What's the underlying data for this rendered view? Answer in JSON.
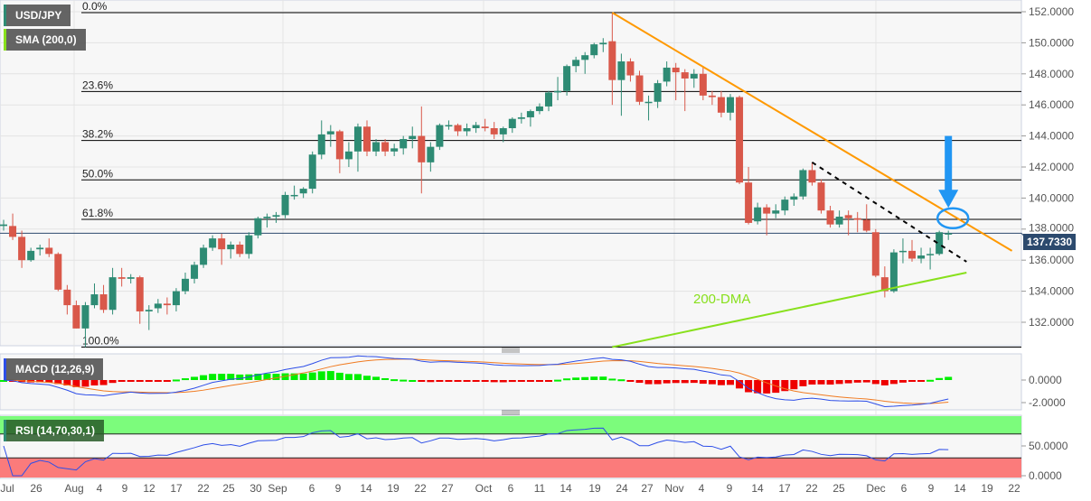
{
  "symbol_label": "USD/JPY",
  "sma_label": "SMA (200,0)",
  "macd_label": "MACD (12,26,9)",
  "rsi_label": "RSI (14,70,30,1)",
  "annotation_200dma": "200-DMA",
  "current_price": "137.7330",
  "colors": {
    "up": "#2e8b74",
    "down": "#d9584a",
    "fib": "#000000",
    "trend": "#ff9900",
    "sma": "#88e01c",
    "arrow": "#2196f3",
    "price_tag": "#2c4a6e",
    "macd": "#2d4ee8",
    "signal": "#f07a20",
    "hist_up": "#00ee00",
    "hist_down": "#ee0000",
    "rsi": "#2d4ee8",
    "overbought": "#7cfc7c",
    "oversold": "#fb7b7b"
  },
  "chart_data": {
    "type": "candlestick",
    "ylim": [
      130.4,
      152.6
    ],
    "y_ticks": [
      "152.0000",
      "150.0000",
      "148.0000",
      "146.0000",
      "144.0000",
      "142.0000",
      "140.0000",
      "138.0000",
      "136.0000",
      "134.0000",
      "132.0000"
    ],
    "x_ticks": [
      "Jul",
      "26",
      "Aug",
      "4",
      "9",
      "12",
      "17",
      "22",
      "25",
      "30",
      "Sep",
      "6",
      "9",
      "14",
      "19",
      "22",
      "27",
      "Oct",
      "6",
      "11",
      "14",
      "19",
      "24",
      "27",
      "Nov",
      "4",
      "9",
      "14",
      "17",
      "22",
      "25",
      "Dec",
      "6",
      "9",
      "14",
      "19",
      "22"
    ],
    "candles_ohlc": [
      [
        138.2,
        138.6,
        137.9,
        138.3
      ],
      [
        138.2,
        139.0,
        137.3,
        137.5
      ],
      [
        137.5,
        137.9,
        135.5,
        136.0
      ],
      [
        136.0,
        136.8,
        135.9,
        136.6
      ],
      [
        136.7,
        137.0,
        136.3,
        136.8
      ],
      [
        136.8,
        137.4,
        136.2,
        136.4
      ],
      [
        136.4,
        136.5,
        134.0,
        134.1
      ],
      [
        134.1,
        134.4,
        132.5,
        133.1
      ],
      [
        133.1,
        133.4,
        131.6,
        131.6
      ],
      [
        131.6,
        133.3,
        130.4,
        133.1
      ],
      [
        133.1,
        134.5,
        132.9,
        133.8
      ],
      [
        133.8,
        134.4,
        132.6,
        132.8
      ],
      [
        132.8,
        135.5,
        132.5,
        134.9
      ],
      [
        134.9,
        135.5,
        134.3,
        134.8
      ],
      [
        134.8,
        135.1,
        134.5,
        134.9
      ],
      [
        134.9,
        135.0,
        131.9,
        132.7
      ],
      [
        132.7,
        133.1,
        131.5,
        132.8
      ],
      [
        132.9,
        133.5,
        132.6,
        133.2
      ],
      [
        133.2,
        133.6,
        132.5,
        133.1
      ],
      [
        133.1,
        134.2,
        132.7,
        134.0
      ],
      [
        134.0,
        135.2,
        133.8,
        134.8
      ],
      [
        134.8,
        135.9,
        134.5,
        135.7
      ],
      [
        135.7,
        137.0,
        135.5,
        136.8
      ],
      [
        136.8,
        137.6,
        136.6,
        137.4
      ],
      [
        137.4,
        137.7,
        135.7,
        136.7
      ],
      [
        136.7,
        137.2,
        136.1,
        137.0
      ],
      [
        137.0,
        137.2,
        136.2,
        136.4
      ],
      [
        136.4,
        137.8,
        136.1,
        137.6
      ],
      [
        137.6,
        138.8,
        137.4,
        138.7
      ],
      [
        138.7,
        139.0,
        138.1,
        138.8
      ],
      [
        138.8,
        139.1,
        138.4,
        138.9
      ],
      [
        138.9,
        140.4,
        138.7,
        140.2
      ],
      [
        140.2,
        140.8,
        139.9,
        140.2
      ],
      [
        140.3,
        140.7,
        140.0,
        140.6
      ],
      [
        140.6,
        143.0,
        140.3,
        142.8
      ],
      [
        142.8,
        145.0,
        142.5,
        144.1
      ],
      [
        144.1,
        144.7,
        143.3,
        144.3
      ],
      [
        144.3,
        144.4,
        141.6,
        142.5
      ],
      [
        142.5,
        143.6,
        142.0,
        143.0
      ],
      [
        143.0,
        144.8,
        141.7,
        144.6
      ],
      [
        144.6,
        145.0,
        142.7,
        143.0
      ],
      [
        143.0,
        143.8,
        142.7,
        143.6
      ],
      [
        143.6,
        143.8,
        142.7,
        143.0
      ],
      [
        143.0,
        143.5,
        142.7,
        143.2
      ],
      [
        143.2,
        144.0,
        142.8,
        143.8
      ],
      [
        143.8,
        144.6,
        143.2,
        144.0
      ],
      [
        144.0,
        145.9,
        140.3,
        142.3
      ],
      [
        142.3,
        143.6,
        141.7,
        143.3
      ],
      [
        143.3,
        144.8,
        143.1,
        144.7
      ],
      [
        144.7,
        145.0,
        144.4,
        144.7
      ],
      [
        144.7,
        144.8,
        144.0,
        144.3
      ],
      [
        144.3,
        144.8,
        144.0,
        144.5
      ],
      [
        144.5,
        144.9,
        144.2,
        144.7
      ],
      [
        144.6,
        145.1,
        144.3,
        144.5
      ],
      [
        144.5,
        144.9,
        143.8,
        144.1
      ],
      [
        144.1,
        144.6,
        143.6,
        144.5
      ],
      [
        144.5,
        145.2,
        144.2,
        145.1
      ],
      [
        145.1,
        145.5,
        144.8,
        145.2
      ],
      [
        145.2,
        145.7,
        144.6,
        145.6
      ],
      [
        145.6,
        146.1,
        145.4,
        145.9
      ],
      [
        145.9,
        146.9,
        145.6,
        146.8
      ],
      [
        146.8,
        147.8,
        146.3,
        146.9
      ],
      [
        146.9,
        148.6,
        146.6,
        148.5
      ],
      [
        148.5,
        149.1,
        148.1,
        148.9
      ],
      [
        148.9,
        149.4,
        148.0,
        149.2
      ],
      [
        149.2,
        150.0,
        149.0,
        149.9
      ],
      [
        149.9,
        150.3,
        149.4,
        150.0
      ],
      [
        150.1,
        151.9,
        146.0,
        147.6
      ],
      [
        147.6,
        149.3,
        145.3,
        148.8
      ],
      [
        148.8,
        149.0,
        147.5,
        147.9
      ],
      [
        147.9,
        148.2,
        146.0,
        146.2
      ],
      [
        146.2,
        146.6,
        145.0,
        146.2
      ],
      [
        146.2,
        147.6,
        145.8,
        147.4
      ],
      [
        147.5,
        148.8,
        147.2,
        148.4
      ],
      [
        148.4,
        148.7,
        146.3,
        148.1
      ],
      [
        148.1,
        148.3,
        145.6,
        147.7
      ],
      [
        147.7,
        148.3,
        147.1,
        148.0
      ],
      [
        148.0,
        148.4,
        146.3,
        146.6
      ],
      [
        146.6,
        146.9,
        146.0,
        146.5
      ],
      [
        146.5,
        146.9,
        145.2,
        145.5
      ],
      [
        145.5,
        146.7,
        145.0,
        146.5
      ],
      [
        146.5,
        146.6,
        140.9,
        141.0
      ],
      [
        141.0,
        142.0,
        138.3,
        138.4
      ],
      [
        138.5,
        139.7,
        138.3,
        139.4
      ],
      [
        139.4,
        139.6,
        137.6,
        139.0
      ],
      [
        139.0,
        139.6,
        138.7,
        139.2
      ],
      [
        139.2,
        140.1,
        138.9,
        139.9
      ],
      [
        139.9,
        140.3,
        139.5,
        140.1
      ],
      [
        140.1,
        141.9,
        139.9,
        141.8
      ],
      [
        141.8,
        142.3,
        140.8,
        141.0
      ],
      [
        141.0,
        141.2,
        139.0,
        139.2
      ],
      [
        139.2,
        139.5,
        138.1,
        138.3
      ],
      [
        138.3,
        139.2,
        138.1,
        138.8
      ],
      [
        138.9,
        139.2,
        137.6,
        138.7
      ],
      [
        138.7,
        139.1,
        137.8,
        138.6
      ],
      [
        138.6,
        139.6,
        137.8,
        137.9
      ],
      [
        137.8,
        138.0,
        134.9,
        135.0
      ],
      [
        134.9,
        135.6,
        133.6,
        134.0
      ],
      [
        134.0,
        136.7,
        133.9,
        136.5
      ],
      [
        136.6,
        137.4,
        135.8,
        136.6
      ],
      [
        136.6,
        137.3,
        135.9,
        136.1
      ],
      [
        136.1,
        136.8,
        135.8,
        136.3
      ],
      [
        136.4,
        136.8,
        135.4,
        136.4
      ],
      [
        136.4,
        137.9,
        136.3,
        137.8
      ],
      [
        137.7,
        137.9,
        137.3,
        137.733
      ]
    ],
    "fibonacci": [
      {
        "label": "0.0%",
        "price": 151.94
      },
      {
        "label": "23.6%",
        "price": 146.86
      },
      {
        "label": "38.2%",
        "price": 143.71
      },
      {
        "label": "50.0%",
        "price": 141.17
      },
      {
        "label": "61.8%",
        "price": 138.63
      },
      {
        "label": "100.0%",
        "price": 130.4
      }
    ],
    "trendline_resistance": {
      "from_candle": 67,
      "from_price": 151.94,
      "to_candle": 111,
      "to_price": 136.6
    },
    "trendline_dashed": {
      "from_candle": 89,
      "from_price": 142.3,
      "to_candle": 106,
      "to_price": 135.9
    },
    "sma200": {
      "from_candle": 67,
      "from_price": 130.4,
      "to_candle": 106,
      "to_price": 135.2
    },
    "arrow": {
      "candle": 104,
      "from_price": 144.0,
      "to_price": 139.6
    },
    "circle": {
      "candle": 104,
      "price": 138.7
    },
    "macd": {
      "fast": 12,
      "slow": 26,
      "signal": 9,
      "ylim": [
        -2.6,
        2.4
      ],
      "y_ticks": [
        "0.0000",
        "-2.0000"
      ]
    },
    "rsi": {
      "period": 14,
      "overbought": 70,
      "oversold": 30,
      "ylim": [
        0,
        100
      ],
      "y_ticks": [
        "50.0000",
        "0.0000"
      ]
    }
  }
}
